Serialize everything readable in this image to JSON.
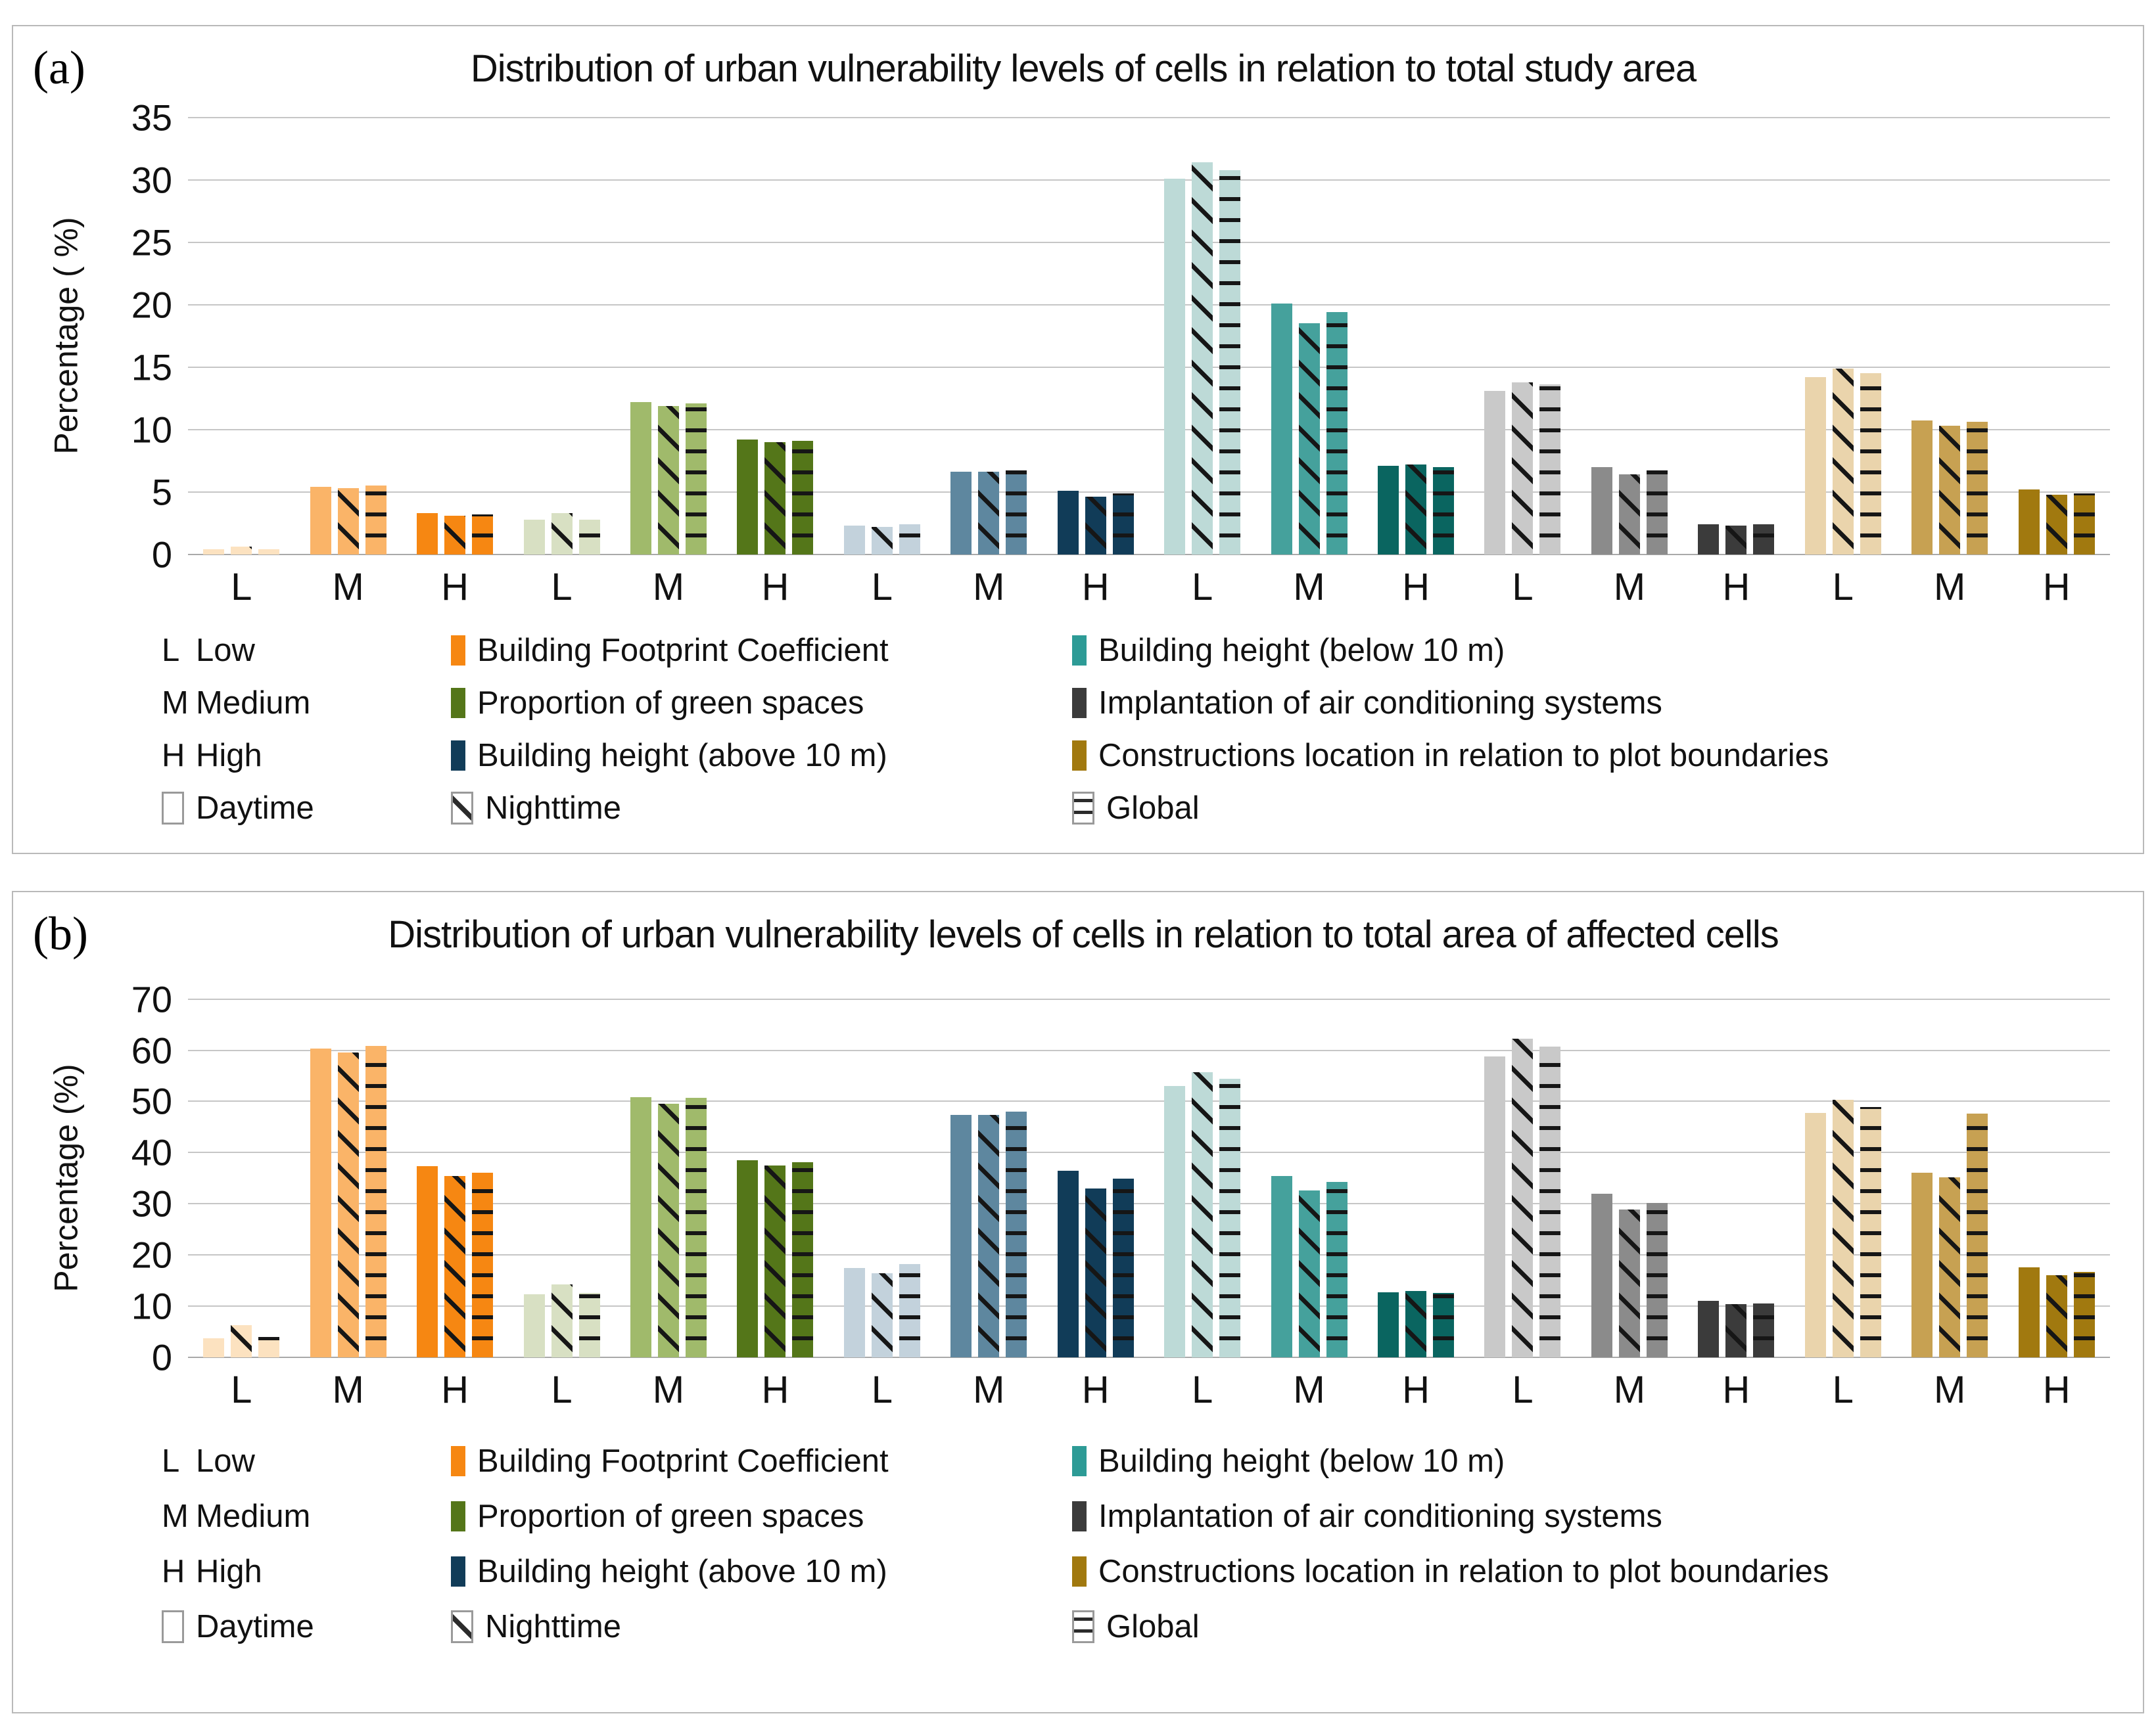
{
  "palette": {
    "orange": {
      "L": "#fce2c0",
      "M": "#fab468",
      "H": "#f68712",
      "legend": "#f68712"
    },
    "green": {
      "L": "#d8e0c3",
      "M": "#a0ba6b",
      "H": "#547619",
      "legend": "#547619"
    },
    "navy": {
      "L": "#c3d2dc",
      "M": "#5e879f",
      "H": "#113c58",
      "legend": "#113c58"
    },
    "teal": {
      "L": "#bddad7",
      "M": "#45a19c",
      "H": "#0a6560",
      "legend": "#2d9b96"
    },
    "gray": {
      "L": "#c9c9c9",
      "M": "#8b8b8b",
      "H": "#3b3b3b",
      "legend": "#3b3b3b"
    },
    "gold": {
      "L": "#ead4ac",
      "M": "#c7a152",
      "H": "#a1790f",
      "legend": "#a1790f"
    }
  },
  "series": [
    {
      "key": "daytime",
      "label": "Daytime",
      "pattern": "solid"
    },
    {
      "key": "nighttime",
      "label": "Nighttime",
      "pattern": "diagonal-hatch"
    },
    {
      "key": "global",
      "label": "Global",
      "pattern": "horizontal-hatch"
    }
  ],
  "legend": {
    "levels": [
      {
        "abbr": "L",
        "label": "Low"
      },
      {
        "abbr": "M",
        "label": "Medium"
      },
      {
        "abbr": "H",
        "label": "High"
      }
    ],
    "variables": [
      {
        "label": "Building Footprint Coefficient",
        "color": "orange"
      },
      {
        "label": "Proportion of green spaces",
        "color": "green"
      },
      {
        "label": "Building height (above 10 m)",
        "color": "navy"
      },
      {
        "label": "Building height (below 10 m)",
        "color": "teal"
      },
      {
        "label": "Implantation of air conditioning systems",
        "color": "gray"
      },
      {
        "label": "Constructions location in relation to plot boundaries",
        "color": "gold"
      }
    ]
  },
  "chart_data": [
    {
      "tag": "(a)",
      "type": "bar",
      "title": "Distribution of urban vulnerability levels of cells in relation to total study area",
      "ylabel": "Percentage  ( %)",
      "ylim": [
        0,
        35
      ],
      "ytick_step": 5,
      "grid": true,
      "legend_position": "bottom",
      "level_keys": [
        "L",
        "M",
        "H"
      ],
      "series_labels": [
        "Daytime",
        "Nighttime",
        "Global"
      ],
      "variables": [
        {
          "name": "Building Footprint Coefficient",
          "color": "orange",
          "values": {
            "L": [
              0.4,
              0.6,
              0.4
            ],
            "M": [
              5.4,
              5.3,
              5.5
            ],
            "H": [
              3.3,
              3.1,
              3.2
            ]
          }
        },
        {
          "name": "Proportion of green spaces",
          "color": "green",
          "values": {
            "L": [
              2.8,
              3.3,
              2.8
            ],
            "M": [
              12.2,
              11.9,
              12.1
            ],
            "H": [
              9.2,
              9.0,
              9.1
            ]
          }
        },
        {
          "name": "Building height (above 10 m)",
          "color": "navy",
          "values": {
            "L": [
              2.3,
              2.2,
              2.4
            ],
            "M": [
              6.6,
              6.6,
              6.7
            ],
            "H": [
              5.1,
              4.6,
              4.9
            ]
          }
        },
        {
          "name": "Building height (below 10 m)",
          "color": "teal",
          "values": {
            "L": [
              30.1,
              31.4,
              30.8
            ],
            "M": [
              20.1,
              18.5,
              19.4
            ],
            "H": [
              7.1,
              7.2,
              7.0
            ]
          }
        },
        {
          "name": "Implantation of air conditioning systems",
          "color": "gray",
          "values": {
            "L": [
              13.1,
              13.8,
              13.6
            ],
            "M": [
              7.0,
              6.4,
              6.7
            ],
            "H": [
              2.4,
              2.3,
              2.4
            ]
          }
        },
        {
          "name": "Constructions location in relation to plot boundaries",
          "color": "gold",
          "values": {
            "L": [
              14.2,
              14.9,
              14.5
            ],
            "M": [
              10.7,
              10.3,
              10.6
            ],
            "H": [
              5.2,
              4.8,
              4.9
            ]
          }
        }
      ]
    },
    {
      "tag": "(b)",
      "type": "bar",
      "title": "Distribution of urban vulnerability levels of cells in relation to total area of affected cells",
      "ylabel": "Percentage (%)",
      "ylim": [
        0,
        70
      ],
      "ytick_step": 10,
      "grid": true,
      "legend_position": "bottom",
      "level_keys": [
        "L",
        "M",
        "H"
      ],
      "series_labels": [
        "Daytime",
        "Nighttime",
        "Global"
      ],
      "variables": [
        {
          "name": "Building Footprint Coefficient",
          "color": "orange",
          "values": {
            "L": [
              3.7,
              6.3,
              4.0
            ],
            "M": [
              60.3,
              59.6,
              60.8
            ],
            "H": [
              37.4,
              35.4,
              36.1
            ]
          }
        },
        {
          "name": "Proportion of green spaces",
          "color": "green",
          "values": {
            "L": [
              12.3,
              14.2,
              12.6
            ],
            "M": [
              50.8,
              49.6,
              50.7
            ],
            "H": [
              38.5,
              37.5,
              38.1
            ]
          }
        },
        {
          "name": "Building height (above 10 m)",
          "color": "navy",
          "values": {
            "L": [
              17.4,
              16.4,
              18.2
            ],
            "M": [
              47.4,
              47.3,
              48.0
            ],
            "H": [
              36.4,
              33.0,
              34.9
            ]
          }
        },
        {
          "name": "Building height (below 10 m)",
          "color": "teal",
          "values": {
            "L": [
              53.0,
              55.7,
              54.4
            ],
            "M": [
              35.4,
              32.6,
              34.3
            ],
            "H": [
              12.7,
              12.9,
              12.5
            ]
          }
        },
        {
          "name": "Implantation of air conditioning systems",
          "color": "gray",
          "values": {
            "L": [
              58.8,
              62.2,
              60.7
            ],
            "M": [
              31.9,
              28.9,
              30.1
            ],
            "H": [
              11.0,
              10.4,
              10.5
            ]
          }
        },
        {
          "name": "Constructions location in relation to plot boundaries",
          "color": "gold",
          "values": {
            "L": [
              47.8,
              50.3,
              48.9
            ],
            "M": [
              36.0,
              35.1,
              47.6
            ],
            "H": [
              17.5,
              16.0,
              16.6
            ]
          }
        }
      ]
    }
  ]
}
